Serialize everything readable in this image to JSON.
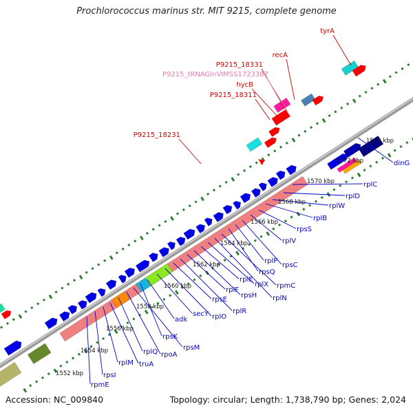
{
  "title": "Prochlorococcus marinus str. MIT 9215, complete genome",
  "footer": {
    "accession": "Accession: NC_009840",
    "topology": "Topology: circular; Length: 1,738,790 bp; Genes: 2,024"
  },
  "colors": {
    "backbone": "#8c8c8c",
    "tick_dots": "#2e7d2e",
    "feature_label": "#cc0000",
    "gene_label": "#0000cc",
    "trna_label": "#e87aa8",
    "cds_blue": "#0000e6",
    "rrna_salmon": "#f08080"
  },
  "kbp_labels": [
    "1552 kbp",
    "1554 kbp",
    "1556 kbp",
    "1558 kbp",
    "1560 kbp",
    "1562 kbp",
    "1564 kbp",
    "1566 kbp",
    "1568 kbp",
    "1570 kbp",
    "1572 kbp",
    "1574 kbp"
  ],
  "top_labels": [
    "tyrA",
    "recA",
    "P9215_18331",
    "P9215_tRNAGlnVIMSS1723387",
    "hycB",
    "P9215_18311",
    "P9215_18231"
  ],
  "gene_labels": [
    "dinG",
    "rplC",
    "rplD",
    "rplW",
    "rplB",
    "rpsS",
    "rplV",
    "rpsC",
    "rplP",
    "rpsQ",
    "rpmC",
    "rplN",
    "rplX",
    "rplE",
    "rpsH",
    "rplF",
    "rplR",
    "rpsE",
    "rplO",
    "secY",
    "adk",
    "rpsK",
    "rpsM",
    "rpoA",
    "rplQ",
    "truA",
    "rplM",
    "rpsI",
    "rpmE"
  ]
}
